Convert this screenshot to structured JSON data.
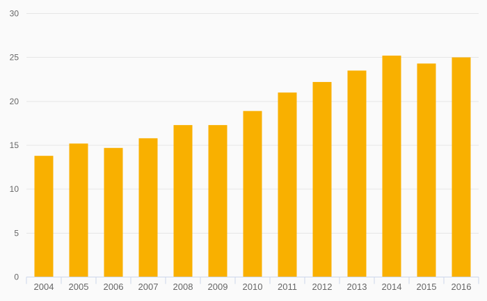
{
  "chart_data": {
    "type": "bar",
    "title": "",
    "xlabel": "",
    "ylabel": "",
    "categories": [
      "2004",
      "2005",
      "2006",
      "2007",
      "2008",
      "2009",
      "2010",
      "2011",
      "2012",
      "2013",
      "2014",
      "2015",
      "2016"
    ],
    "values": [
      13.8,
      15.2,
      14.7,
      15.8,
      17.3,
      17.3,
      18.9,
      21.0,
      22.2,
      23.5,
      25.2,
      24.3,
      25.0
    ],
    "ylim": [
      0,
      30
    ],
    "y_ticks": [
      0,
      5,
      10,
      15,
      20,
      25,
      30
    ],
    "grid": true,
    "legend": false,
    "colors": {
      "bar": "#F9B000",
      "background": "#FAFAFA",
      "gridline": "#E6E6E6",
      "axis_line": "#CCD6EB",
      "label": "#666666"
    }
  }
}
